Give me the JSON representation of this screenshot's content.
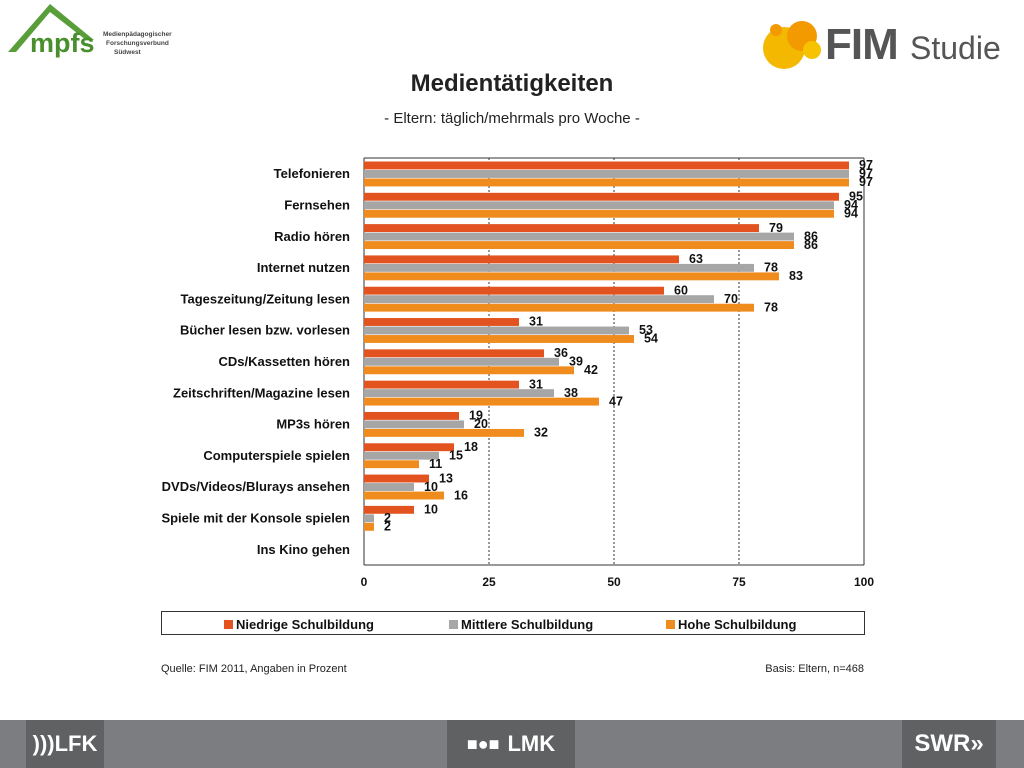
{
  "logos": {
    "left_name": "mpfs",
    "left_sub": [
      "Medienpädagogischer",
      "Forschungsverbund",
      "Südwest"
    ],
    "right_name": "FIM",
    "right_sub": "Studie"
  },
  "title": "Medientätigkeiten",
  "subtitle": "- Eltern: täglich/mehrmals pro Woche -",
  "chart_data": {
    "type": "bar",
    "orientation": "horizontal",
    "categories": [
      "Telefonieren",
      "Fernsehen",
      "Radio hören",
      "Internet nutzen",
      "Tageszeitung/Zeitung lesen",
      "Bücher lesen bzw. vorlesen",
      "CDs/Kassetten hören",
      "Zeitschriften/Magazine lesen",
      "MP3s hören",
      "Computerspiele spielen",
      "DVDs/Videos/Blurays ansehen",
      "Spiele mit der Konsole spielen",
      "Ins Kino gehen"
    ],
    "series": [
      {
        "name": "Niedrige Schulbildung",
        "color": "#e2531f",
        "values": [
          97,
          95,
          79,
          63,
          60,
          31,
          36,
          31,
          19,
          18,
          13,
          10,
          null
        ]
      },
      {
        "name": "Mittlere Schulbildung",
        "color": "#a6a6a6",
        "values": [
          97,
          94,
          86,
          78,
          70,
          53,
          39,
          38,
          20,
          15,
          10,
          2,
          null
        ]
      },
      {
        "name": "Hohe Schulbildung",
        "color": "#f08c1e",
        "values": [
          97,
          94,
          86,
          83,
          78,
          54,
          42,
          47,
          32,
          11,
          16,
          2,
          null
        ]
      }
    ],
    "xlim": [
      0,
      100
    ],
    "xticks": [
      0,
      25,
      50,
      75,
      100
    ],
    "grid": "dashed vertical",
    "legend": "bottom"
  },
  "source": "Quelle: FIM 2011, Angaben in Prozent",
  "basis": "Basis: Eltern, n=468",
  "footer": {
    "left": "LFK",
    "center": "LMK",
    "right": "SWR"
  }
}
